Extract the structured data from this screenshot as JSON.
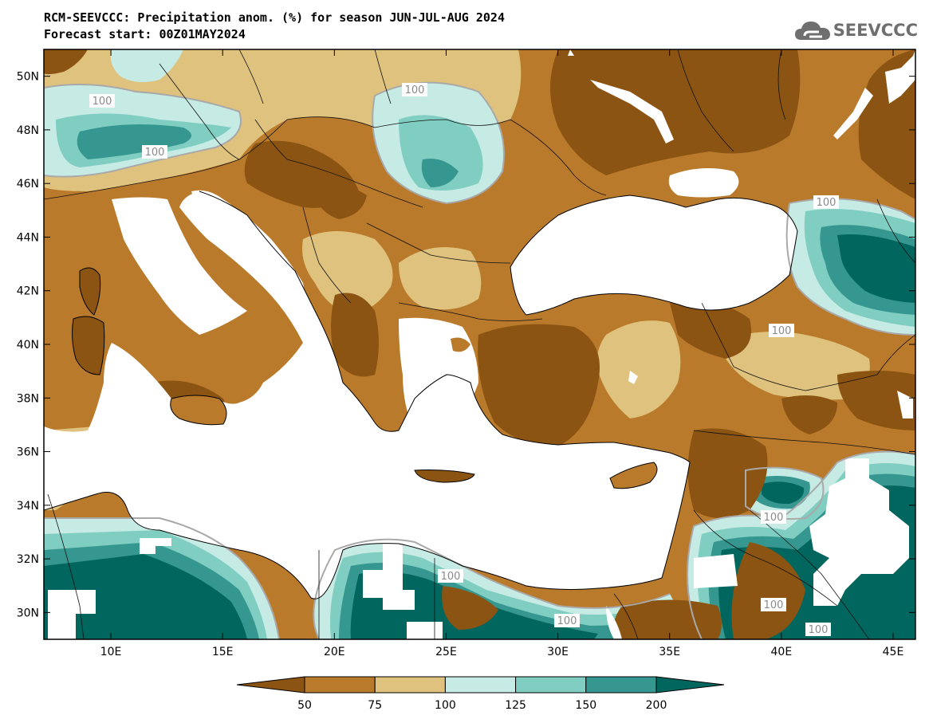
{
  "title": {
    "line1": "RCM-SEEVCCC: Precipitation anom. (%) for season JUN-JUL-AUG 2024",
    "line2": "Forecast start: 00Z01MAY2024"
  },
  "logo": {
    "text": "SEEVCCC",
    "icon": "cloud-icon"
  },
  "map": {
    "lon_labels": [
      "10E",
      "15E",
      "20E",
      "25E",
      "30E",
      "35E",
      "40E",
      "45E"
    ],
    "lat_labels": [
      "50N",
      "48N",
      "46N",
      "44N",
      "42N",
      "40N",
      "38N",
      "36N",
      "34N",
      "32N",
      "30N"
    ],
    "lon_range": [
      7,
      46
    ],
    "lat_range": [
      29,
      51
    ],
    "contour_labels": [
      "100",
      "100",
      "100",
      "100",
      "100",
      "100",
      "100",
      "100",
      "100",
      "100",
      "100"
    ]
  },
  "colorbar": {
    "tick_labels": [
      "50",
      "75",
      "100",
      "125",
      "150",
      "200"
    ],
    "colors": [
      "#8b5412",
      "#b97a2c",
      "#dfc27d",
      "#c6ebe5",
      "#80cdc1",
      "#35978f",
      "#01665e"
    ]
  }
}
